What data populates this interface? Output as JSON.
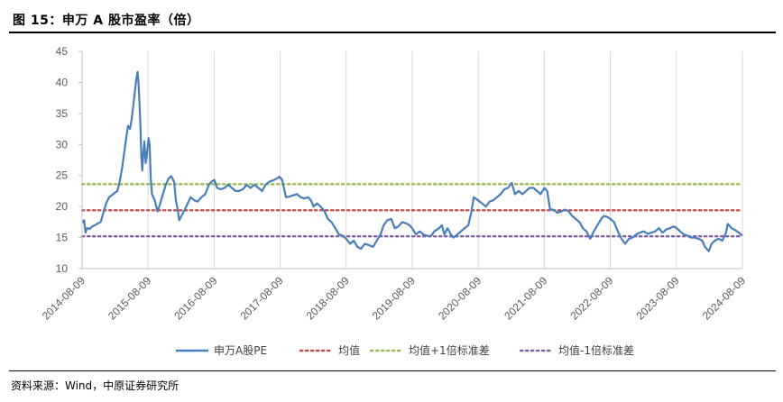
{
  "figure": {
    "title": "图 15：申万 A 股市盈率（倍）",
    "source": "资料来源：Wind，中原证券研究所"
  },
  "colors": {
    "pe": "#4a7ebb",
    "mean": "#c0504d",
    "plus1sd": "#9bbb59",
    "minus1sd": "#8064a2",
    "grid": "#d9d9d9",
    "axis": "#bfbfbf"
  },
  "chart_data": {
    "type": "line",
    "y_ticks": [
      "45",
      "40",
      "35",
      "30",
      "25",
      "20",
      "15",
      "10"
    ],
    "ylim": [
      10,
      45
    ],
    "x_ticks": [
      "2014-08-09",
      "2015-08-09",
      "2016-08-09",
      "2017-08-09",
      "2018-08-09",
      "2019-08-09",
      "2020-08-09",
      "2021-08-09",
      "2022-08-09",
      "2023-08-09",
      "2024-08-09"
    ],
    "grid": "vertical",
    "legend_position": "bottom",
    "series": [
      {
        "name": "申万A股PE",
        "style": "solid",
        "points": [
          [
            "2014-08-09",
            17.4
          ],
          [
            "2014-08-20",
            17.8
          ],
          [
            "2014-08-28",
            15.8
          ],
          [
            "2014-09-05",
            16.5
          ],
          [
            "2014-09-20",
            16.4
          ],
          [
            "2014-10-05",
            16.8
          ],
          [
            "2014-10-20",
            17.0
          ],
          [
            "2014-11-05",
            17.3
          ],
          [
            "2014-11-20",
            17.5
          ],
          [
            "2014-12-05",
            19.0
          ],
          [
            "2014-12-20",
            20.5
          ],
          [
            "2015-01-05",
            21.5
          ],
          [
            "2015-01-20",
            21.8
          ],
          [
            "2015-02-05",
            22.2
          ],
          [
            "2015-02-20",
            22.5
          ],
          [
            "2015-03-05",
            24.0
          ],
          [
            "2015-03-20",
            26.5
          ],
          [
            "2015-04-05",
            30.0
          ],
          [
            "2015-04-20",
            33.0
          ],
          [
            "2015-05-01",
            32.5
          ],
          [
            "2015-05-10",
            34.0
          ],
          [
            "2015-05-20",
            36.5
          ],
          [
            "2015-05-28",
            38.5
          ],
          [
            "2015-06-05",
            40.5
          ],
          [
            "2015-06-12",
            41.7
          ],
          [
            "2015-06-17",
            40.0
          ],
          [
            "2015-06-22",
            37.0
          ],
          [
            "2015-06-28",
            33.0
          ],
          [
            "2015-07-03",
            28.0
          ],
          [
            "2015-07-08",
            25.8
          ],
          [
            "2015-07-15",
            29.0
          ],
          [
            "2015-07-20",
            30.5
          ],
          [
            "2015-07-27",
            27.0
          ],
          [
            "2015-08-03",
            28.5
          ],
          [
            "2015-08-12",
            31.0
          ],
          [
            "2015-08-18",
            30.0
          ],
          [
            "2015-08-24",
            24.5
          ],
          [
            "2015-08-31",
            22.0
          ],
          [
            "2015-09-15",
            21.0
          ],
          [
            "2015-09-30",
            19.2
          ],
          [
            "2015-10-15",
            20.5
          ],
          [
            "2015-10-30",
            22.0
          ],
          [
            "2015-11-15",
            23.5
          ],
          [
            "2015-11-30",
            24.5
          ],
          [
            "2015-12-15",
            24.9
          ],
          [
            "2015-12-31",
            24.0
          ],
          [
            "2016-01-10",
            21.0
          ],
          [
            "2016-01-20",
            19.5
          ],
          [
            "2016-01-28",
            17.8
          ],
          [
            "2016-02-10",
            18.5
          ],
          [
            "2016-02-28",
            19.5
          ],
          [
            "2016-03-15",
            20.5
          ],
          [
            "2016-04-01",
            21.5
          ],
          [
            "2016-04-20",
            21.0
          ],
          [
            "2016-05-10",
            20.8
          ],
          [
            "2016-05-30",
            21.5
          ],
          [
            "2016-06-20",
            22.0
          ],
          [
            "2016-07-10",
            23.5
          ],
          [
            "2016-07-25",
            24.0
          ],
          [
            "2016-08-09",
            24.3
          ],
          [
            "2016-08-25",
            23.0
          ],
          [
            "2016-09-15",
            22.8
          ],
          [
            "2016-10-05",
            23.0
          ],
          [
            "2016-10-25",
            23.5
          ],
          [
            "2016-11-15",
            23.0
          ],
          [
            "2016-12-05",
            22.5
          ],
          [
            "2016-12-25",
            22.5
          ],
          [
            "2017-01-15",
            22.8
          ],
          [
            "2017-02-05",
            23.5
          ],
          [
            "2017-02-25",
            23.0
          ],
          [
            "2017-03-20",
            23.5
          ],
          [
            "2017-04-10",
            23.0
          ],
          [
            "2017-05-01",
            22.5
          ],
          [
            "2017-05-20",
            23.5
          ],
          [
            "2017-06-10",
            24.0
          ],
          [
            "2017-06-30",
            24.2
          ],
          [
            "2017-07-20",
            24.5
          ],
          [
            "2017-08-05",
            24.8
          ],
          [
            "2017-08-20",
            24.3
          ],
          [
            "2017-09-10",
            21.5
          ],
          [
            "2017-09-30",
            21.6
          ],
          [
            "2017-10-20",
            21.8
          ],
          [
            "2017-11-10",
            22.0
          ],
          [
            "2017-11-30",
            21.5
          ],
          [
            "2017-12-20",
            21.3
          ],
          [
            "2018-01-10",
            21.5
          ],
          [
            "2018-01-26",
            21.0
          ],
          [
            "2018-02-10",
            20.0
          ],
          [
            "2018-03-01",
            20.5
          ],
          [
            "2018-03-20",
            20.0
          ],
          [
            "2018-04-10",
            19.3
          ],
          [
            "2018-04-30",
            18.0
          ],
          [
            "2018-05-20",
            17.5
          ],
          [
            "2018-06-10",
            16.5
          ],
          [
            "2018-06-30",
            15.5
          ],
          [
            "2018-07-20",
            15.3
          ],
          [
            "2018-08-09",
            14.8
          ],
          [
            "2018-08-30",
            14.0
          ],
          [
            "2018-09-20",
            14.5
          ],
          [
            "2018-10-10",
            13.5
          ],
          [
            "2018-10-30",
            13.2
          ],
          [
            "2018-11-20",
            14.0
          ],
          [
            "2018-12-10",
            13.8
          ],
          [
            "2019-01-05",
            13.5
          ],
          [
            "2019-01-25",
            14.5
          ],
          [
            "2019-02-15",
            15.5
          ],
          [
            "2019-03-05",
            17.0
          ],
          [
            "2019-03-25",
            17.8
          ],
          [
            "2019-04-15",
            18.0
          ],
          [
            "2019-05-05",
            16.5
          ],
          [
            "2019-05-25",
            16.8
          ],
          [
            "2019-06-15",
            17.5
          ],
          [
            "2019-07-05",
            17.3
          ],
          [
            "2019-07-25",
            17.0
          ],
          [
            "2019-08-09",
            16.5
          ],
          [
            "2019-08-30",
            15.5
          ],
          [
            "2019-09-20",
            16.0
          ],
          [
            "2019-10-10",
            15.5
          ],
          [
            "2019-10-30",
            15.3
          ],
          [
            "2019-11-20",
            15.2
          ],
          [
            "2019-12-10",
            16.0
          ],
          [
            "2020-01-05",
            16.5
          ],
          [
            "2020-01-20",
            17.0
          ],
          [
            "2020-02-03",
            15.5
          ],
          [
            "2020-02-20",
            16.5
          ],
          [
            "2020-03-10",
            15.5
          ],
          [
            "2020-03-25",
            15.0
          ],
          [
            "2020-04-15",
            15.5
          ],
          [
            "2020-05-05",
            16.0
          ],
          [
            "2020-05-25",
            16.5
          ],
          [
            "2020-06-15",
            17.0
          ],
          [
            "2020-07-01",
            19.0
          ],
          [
            "2020-07-15",
            21.5
          ],
          [
            "2020-08-09",
            21.0
          ],
          [
            "2020-08-30",
            20.5
          ],
          [
            "2020-09-20",
            20.0
          ],
          [
            "2020-10-10",
            20.8
          ],
          [
            "2020-10-30",
            21.0
          ],
          [
            "2020-11-20",
            21.5
          ],
          [
            "2020-12-10",
            22.0
          ],
          [
            "2020-12-31",
            22.8
          ],
          [
            "2021-01-20",
            23.0
          ],
          [
            "2021-02-10",
            23.8
          ],
          [
            "2021-02-28",
            22.0
          ],
          [
            "2021-03-20",
            22.5
          ],
          [
            "2021-04-10",
            22.0
          ],
          [
            "2021-04-30",
            22.5
          ],
          [
            "2021-05-20",
            23.0
          ],
          [
            "2021-06-10",
            23.0
          ],
          [
            "2021-06-30",
            22.5
          ],
          [
            "2021-07-20",
            22.0
          ],
          [
            "2021-08-09",
            23.0
          ],
          [
            "2021-08-25",
            22.5
          ],
          [
            "2021-09-10",
            19.5
          ],
          [
            "2021-09-30",
            19.5
          ],
          [
            "2021-10-20",
            19.0
          ],
          [
            "2021-11-10",
            19.2
          ],
          [
            "2021-11-30",
            19.5
          ],
          [
            "2021-12-20",
            19.3
          ],
          [
            "2022-01-10",
            18.5
          ],
          [
            "2022-01-30",
            18.0
          ],
          [
            "2022-02-20",
            17.5
          ],
          [
            "2022-03-10",
            16.5
          ],
          [
            "2022-03-30",
            16.0
          ],
          [
            "2022-04-20",
            14.8
          ],
          [
            "2022-05-10",
            16.0
          ],
          [
            "2022-05-30",
            17.0
          ],
          [
            "2022-06-20",
            18.0
          ],
          [
            "2022-07-05",
            18.5
          ],
          [
            "2022-07-25",
            18.3
          ],
          [
            "2022-08-09",
            18.0
          ],
          [
            "2022-08-30",
            17.5
          ],
          [
            "2022-09-20",
            16.0
          ],
          [
            "2022-10-10",
            14.8
          ],
          [
            "2022-10-30",
            14.0
          ],
          [
            "2022-11-20",
            14.8
          ],
          [
            "2022-12-10",
            15.0
          ],
          [
            "2022-12-31",
            15.5
          ],
          [
            "2023-01-20",
            15.8
          ],
          [
            "2023-02-10",
            16.0
          ],
          [
            "2023-03-05",
            15.6
          ],
          [
            "2023-03-25",
            15.8
          ],
          [
            "2023-04-15",
            16.0
          ],
          [
            "2023-05-05",
            16.5
          ],
          [
            "2023-05-25",
            15.8
          ],
          [
            "2023-06-15",
            16.3
          ],
          [
            "2023-07-05",
            16.5
          ],
          [
            "2023-07-25",
            16.8
          ],
          [
            "2023-08-09",
            16.6
          ],
          [
            "2023-08-30",
            16.0
          ],
          [
            "2023-09-20",
            15.5
          ],
          [
            "2023-10-10",
            15.3
          ],
          [
            "2023-10-30",
            15.0
          ],
          [
            "2023-11-20",
            15.0
          ],
          [
            "2023-12-10",
            14.8
          ],
          [
            "2023-12-31",
            14.5
          ],
          [
            "2024-01-15",
            13.5
          ],
          [
            "2024-02-05",
            12.8
          ],
          [
            "2024-02-20",
            14.0
          ],
          [
            "2024-03-10",
            14.5
          ],
          [
            "2024-03-30",
            14.8
          ],
          [
            "2024-04-20",
            14.5
          ],
          [
            "2024-05-10",
            15.8
          ],
          [
            "2024-05-20",
            17.2
          ],
          [
            "2024-06-10",
            16.5
          ],
          [
            "2024-06-30",
            16.2
          ],
          [
            "2024-07-20",
            15.8
          ],
          [
            "2024-08-09",
            15.3
          ]
        ]
      },
      {
        "name": "均值",
        "style": "dotted",
        "constant": 19.4
      },
      {
        "name": "均值+1倍标准差",
        "style": "dotted",
        "constant": 23.6
      },
      {
        "name": "均值-1倍标准差",
        "style": "dotted",
        "constant": 15.2
      }
    ]
  }
}
